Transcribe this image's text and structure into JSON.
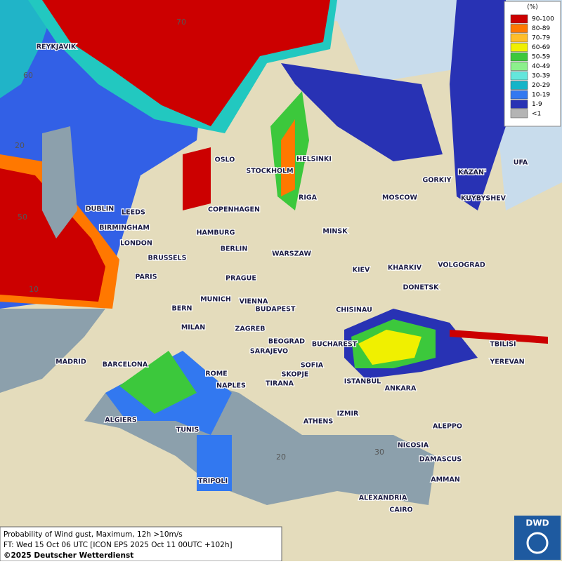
{
  "legend": {
    "unit": "(%)",
    "classes": [
      {
        "label": "90-100",
        "color": "#cc0000"
      },
      {
        "label": "80-89",
        "color": "#ff7800"
      },
      {
        "label": "70-79",
        "color": "#ffbe28"
      },
      {
        "label": "60-69",
        "color": "#f0f000"
      },
      {
        "label": "50-59",
        "color": "#3cc83c"
      },
      {
        "label": "40-49",
        "color": "#8cf08c"
      },
      {
        "label": "30-39",
        "color": "#64e6dc"
      },
      {
        "label": "20-29",
        "color": "#14b4c8"
      },
      {
        "label": "10-19",
        "color": "#3278f0"
      },
      {
        "label": "1-9",
        "color": "#2832b4"
      },
      {
        "label": "<1",
        "color": "#b4b4b4"
      }
    ]
  },
  "grid_labels": [
    "70",
    "60",
    "20",
    "50",
    "10",
    "20",
    "30"
  ],
  "cities": [
    "REYKJAVIK",
    "OSLO",
    "STOCKHOLM",
    "HELSINKI",
    "DUBLIN",
    "LEEDS",
    "COPENHAGEN",
    "RIGA",
    "MOSCOW",
    "GORKIY",
    "KAZAN'",
    "UFA",
    "KUYBYSHEV",
    "BIRMINGHAM",
    "HAMBURG",
    "MINSK",
    "LONDON",
    "BERLIN",
    "WARSZAW",
    "BRUSSELS",
    "KIEV",
    "KHARKIV",
    "VOLGOGRAD",
    "PARIS",
    "PRAGUE",
    "DONETSK",
    "MUNICH",
    "VIENNA",
    "BERN",
    "BUDAPEST",
    "CHISINAU",
    "MILAN",
    "ZAGREB",
    "TBILISI",
    "BEOGRAD",
    "BUCHAREST",
    "MADRID",
    "BARCELONA",
    "SARAJEVO",
    "SOFIA",
    "YEREVAN",
    "ROME",
    "SKOPJE",
    "NAPLES",
    "TIRANA",
    "ISTANBUL",
    "ANKARA",
    "ALGIERS",
    "ATHENS",
    "IZMIR",
    "ALEPPO",
    "TUNIS",
    "NICOSIA",
    "DAMASCUS",
    "TRIPOLI",
    "AMMAN",
    "ALEXANDRIA",
    "CAIRO"
  ],
  "footer": {
    "line1": "Probability of Wind gust, Maximum, 12h >10m/s",
    "line2": "FT: Wed 15 Oct 06 UTC [ICON EPS 2025 Oct 11 00UTC +102h]",
    "line3": "©2025 Deutscher Wetterdienst"
  },
  "logo": "DWD"
}
